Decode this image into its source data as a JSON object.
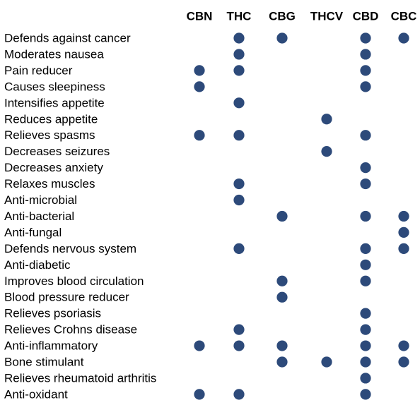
{
  "chart_data": {
    "type": "table",
    "columns": [
      "CBN",
      "THC",
      "CBG",
      "THCV",
      "CBD",
      "CBC"
    ],
    "rows": [
      "Defends against cancer",
      "Moderates nausea",
      "Pain reducer",
      "Causes sleepiness",
      "Intensifies appetite",
      "Reduces appetite",
      "Relieves spasms",
      "Decreases seizures",
      "Decreases anxiety",
      "Relaxes muscles",
      "Anti-microbial",
      "Anti-bacterial",
      "Anti-fungal",
      "Defends nervous system",
      "Anti-diabetic",
      "Improves blood circulation",
      "Blood pressure reducer",
      "Relieves psoriasis",
      "Relieves Crohns disease",
      "Anti-inflammatory",
      "Bone stimulant",
      "Relieves rheumatoid arthritis",
      "Anti-oxidant"
    ],
    "values": [
      [
        0,
        1,
        1,
        0,
        1,
        1
      ],
      [
        0,
        1,
        0,
        0,
        1,
        0
      ],
      [
        1,
        1,
        0,
        0,
        1,
        0
      ],
      [
        1,
        0,
        0,
        0,
        1,
        0
      ],
      [
        0,
        1,
        0,
        0,
        0,
        0
      ],
      [
        0,
        0,
        0,
        1,
        0,
        0
      ],
      [
        1,
        1,
        0,
        0,
        1,
        0
      ],
      [
        0,
        0,
        0,
        1,
        0,
        0
      ],
      [
        0,
        0,
        0,
        0,
        1,
        0
      ],
      [
        0,
        1,
        0,
        0,
        1,
        0
      ],
      [
        0,
        1,
        0,
        0,
        0,
        0
      ],
      [
        0,
        0,
        1,
        0,
        1,
        1
      ],
      [
        0,
        0,
        0,
        0,
        0,
        1
      ],
      [
        0,
        1,
        0,
        0,
        1,
        1
      ],
      [
        0,
        0,
        0,
        0,
        1,
        0
      ],
      [
        0,
        0,
        1,
        0,
        1,
        0
      ],
      [
        0,
        0,
        1,
        0,
        0,
        0
      ],
      [
        0,
        0,
        0,
        0,
        1,
        0
      ],
      [
        0,
        1,
        0,
        0,
        1,
        0
      ],
      [
        1,
        1,
        1,
        0,
        1,
        1
      ],
      [
        0,
        0,
        1,
        1,
        1,
        1
      ],
      [
        0,
        0,
        0,
        0,
        1,
        0
      ],
      [
        1,
        1,
        0,
        0,
        1,
        0
      ]
    ],
    "dot_color": "#2d4a7a"
  }
}
